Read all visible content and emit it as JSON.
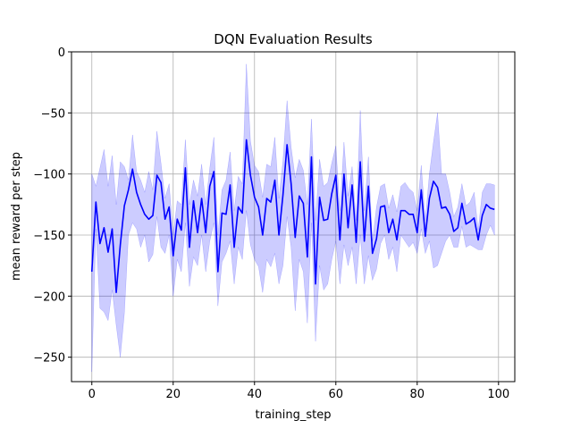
{
  "chart_data": {
    "type": "line",
    "title": "DQN Evaluation Results",
    "xlabel": "training_step",
    "ylabel": "mean reward per step",
    "xlim": [
      -5,
      104
    ],
    "ylim": [
      -270,
      0
    ],
    "xticks": [
      0,
      20,
      40,
      60,
      80,
      100
    ],
    "yticks": [
      0,
      -50,
      -100,
      -150,
      -200,
      -250
    ],
    "xtick_labels": [
      "0",
      "20",
      "40",
      "60",
      "80",
      "100"
    ],
    "ytick_labels": [
      "0",
      "−50",
      "−100",
      "−150",
      "−200",
      "−250"
    ],
    "grid": true,
    "legend": "none",
    "colors": {
      "line": "#0000ff",
      "band": "#0000ff",
      "band_opacity": 0.2,
      "grid": "#b0b0b0"
    },
    "series": [
      {
        "x": [
          0,
          1,
          2,
          3,
          4,
          5,
          6,
          7,
          8,
          9,
          10,
          11,
          12,
          13,
          14,
          15,
          16,
          17,
          18,
          19,
          20,
          21,
          22,
          23,
          24,
          25,
          26,
          27,
          28,
          29,
          30,
          31,
          32,
          33,
          34,
          35,
          36,
          37,
          38,
          39,
          40,
          41,
          42,
          43,
          44,
          45,
          46,
          47,
          48,
          49,
          50,
          51,
          52,
          53,
          54,
          55,
          56,
          57,
          58,
          59,
          60,
          61,
          62,
          63,
          64,
          65,
          66,
          67,
          68,
          69,
          70,
          71,
          72,
          73,
          74,
          75,
          76,
          77,
          78,
          79,
          80,
          81,
          82,
          83,
          84,
          85,
          86,
          87,
          88,
          89,
          90,
          91,
          92,
          93,
          94,
          95,
          96,
          97,
          98,
          99
        ],
        "mean": [
          -180,
          -123,
          -157,
          -144,
          -164,
          -145,
          -197,
          -158,
          -126,
          -113,
          -96,
          -115,
          -125,
          -133,
          -137,
          -134,
          -101,
          -107,
          -137,
          -127,
          -167,
          -137,
          -146,
          -95,
          -160,
          -122,
          -148,
          -120,
          -148,
          -110,
          -98,
          -180,
          -132,
          -133,
          -109,
          -160,
          -127,
          -132,
          -72,
          -101,
          -119,
          -127,
          -150,
          -120,
          -123,
          -105,
          -150,
          -117,
          -76,
          -108,
          -152,
          -118,
          -124,
          -168,
          -86,
          -190,
          -119,
          -138,
          -137,
          -116,
          -101,
          -154,
          -100,
          -144,
          -109,
          -156,
          -90,
          -155,
          -110,
          -165,
          -153,
          -127,
          -126,
          -148,
          -137,
          -154,
          -130,
          -130,
          -133,
          -133,
          -148,
          -113,
          -151,
          -120,
          -106,
          -111,
          -128,
          -127,
          -133,
          -147,
          -144,
          -124,
          -141,
          -139,
          -136,
          -154,
          -134,
          -125,
          -128,
          -129
        ],
        "lower": [
          -262,
          -145,
          -210,
          -213,
          -220,
          -195,
          -224,
          -250,
          -214,
          -150,
          -140,
          -145,
          -160,
          -150,
          -172,
          -166,
          -135,
          -160,
          -165,
          -150,
          -200,
          -170,
          -180,
          -140,
          -192,
          -168,
          -175,
          -150,
          -180,
          -155,
          -140,
          -208,
          -172,
          -165,
          -155,
          -190,
          -160,
          -170,
          -130,
          -158,
          -170,
          -176,
          -197,
          -170,
          -176,
          -165,
          -190,
          -175,
          -135,
          -160,
          -212,
          -170,
          -180,
          -222,
          -140,
          -237,
          -175,
          -195,
          -190,
          -170,
          -155,
          -190,
          -158,
          -175,
          -160,
          -190,
          -150,
          -190,
          -167,
          -187,
          -178,
          -157,
          -150,
          -170,
          -160,
          -180,
          -150,
          -155,
          -160,
          -156,
          -165,
          -145,
          -165,
          -155,
          -177,
          -175,
          -165,
          -155,
          -150,
          -160,
          -160,
          -143,
          -160,
          -158,
          -160,
          -162,
          -162,
          -150,
          -142,
          -150
        ],
        "upper": [
          -100,
          -110,
          -95,
          -80,
          -110,
          -85,
          -125,
          -90,
          -94,
          -105,
          -68,
          -98,
          -105,
          -115,
          -98,
          -113,
          -65,
          -91,
          -120,
          -108,
          -150,
          -122,
          -125,
          -72,
          -125,
          -105,
          -118,
          -92,
          -125,
          -95,
          -70,
          -150,
          -113,
          -105,
          -82,
          -130,
          -102,
          -108,
          -10,
          -73,
          -93,
          -98,
          -119,
          -92,
          -94,
          -70,
          -120,
          -89,
          -40,
          -78,
          -103,
          -88,
          -97,
          -125,
          -55,
          -138,
          -88,
          -110,
          -107,
          -91,
          -77,
          -130,
          -74,
          -118,
          -94,
          -138,
          -48,
          -130,
          -86,
          -155,
          -127,
          -110,
          -108,
          -128,
          -117,
          -131,
          -110,
          -107,
          -112,
          -115,
          -130,
          -93,
          -138,
          -100,
          -74,
          -50,
          -100,
          -100,
          -115,
          -135,
          -127,
          -108,
          -126,
          -123,
          -115,
          -146,
          -115,
          -108,
          -108,
          -109
        ]
      }
    ]
  }
}
